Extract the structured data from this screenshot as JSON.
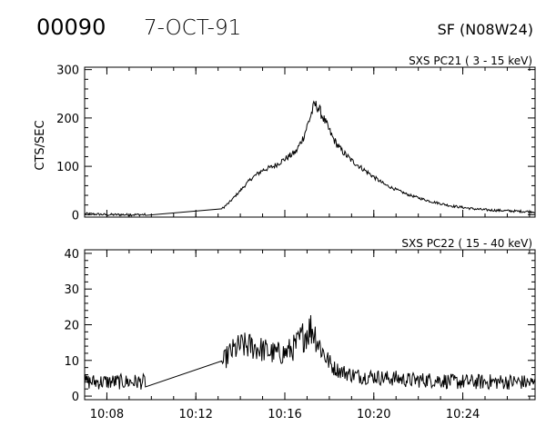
{
  "header": {
    "event_id": "00090",
    "date": "7-OCT-91",
    "location": "SF (N08W24)"
  },
  "chart_data": [
    {
      "type": "line",
      "title": "SXS PC21  (  3 - 15 keV)",
      "ylabel": "CTS/SEC",
      "ylim": [
        -5,
        305
      ],
      "yticks": [
        0,
        100,
        200,
        300
      ],
      "ytick_labels": [
        "0",
        "100",
        "200",
        "300"
      ],
      "xlim": [
        "10:07:00",
        "10:27:15"
      ],
      "xticks": [
        "10:08",
        "10:12",
        "10:16",
        "10:20",
        "10:24"
      ],
      "grid": false,
      "series": [
        {
          "x": [
            "10:07:00",
            "10:07:30",
            "10:08:00",
            "10:08:30",
            "10:09:00",
            "10:09:30",
            "10:09:45",
            "10:13:10",
            "10:13:30",
            "10:14:00",
            "10:14:30",
            "10:15:00",
            "10:15:30",
            "10:16:00",
            "10:16:30",
            "10:16:50",
            "10:17:10",
            "10:17:20",
            "10:17:30",
            "10:17:50",
            "10:18:10",
            "10:18:30",
            "10:19:00",
            "10:19:30",
            "10:20:00",
            "10:20:30",
            "10:21:00",
            "10:21:30",
            "10:22:00",
            "10:22:30",
            "10:23:00",
            "10:23:30",
            "10:24:00",
            "10:24:30",
            "10:25:00",
            "10:25:30",
            "10:26:00",
            "10:26:30",
            "10:27:15"
          ],
          "y": [
            2,
            1,
            0,
            0,
            0,
            0,
            0,
            12,
            25,
            50,
            75,
            92,
            100,
            115,
            130,
            160,
            205,
            228,
            222,
            190,
            158,
            135,
            112,
            95,
            78,
            62,
            52,
            42,
            35,
            28,
            23,
            18,
            15,
            12,
            10,
            9,
            8,
            7,
            6
          ]
        }
      ]
    },
    {
      "type": "line",
      "title": "SXS PC22  ( 15 - 40 keV)",
      "ylabel": "",
      "ylim": [
        -1,
        41
      ],
      "yticks": [
        0,
        10,
        20,
        30,
        40
      ],
      "ytick_labels": [
        "0",
        "10",
        "20",
        "30",
        "40"
      ],
      "xlim": [
        "10:07:00",
        "10:27:15"
      ],
      "xticks": [
        "10:08",
        "10:12",
        "10:16",
        "10:20",
        "10:24"
      ],
      "grid": false,
      "series": [
        {
          "x": [
            "10:07:00",
            "10:07:30",
            "10:08:00",
            "10:08:30",
            "10:09:00",
            "10:09:30",
            "10:09:45",
            "10:13:10",
            "10:13:30",
            "10:14:00",
            "10:14:30",
            "10:15:00",
            "10:15:30",
            "10:16:00",
            "10:16:30",
            "10:16:50",
            "10:17:10",
            "10:17:20",
            "10:17:30",
            "10:17:50",
            "10:18:10",
            "10:18:30",
            "10:19:00",
            "10:19:30",
            "10:20:00",
            "10:20:30",
            "10:21:00",
            "10:21:30",
            "10:22:00",
            "10:22:30",
            "10:23:00",
            "10:23:30",
            "10:24:00",
            "10:24:30",
            "10:25:00",
            "10:25:30",
            "10:26:00",
            "10:26:30",
            "10:27:15"
          ],
          "y": [
            4,
            4,
            4,
            4,
            4,
            4,
            4,
            9,
            12,
            14,
            14,
            13,
            12,
            12,
            14,
            17,
            19,
            18,
            15,
            11,
            8,
            7,
            6,
            5.5,
            5.5,
            5,
            5,
            4.5,
            4.5,
            4.5,
            4.5,
            4,
            4,
            4,
            4,
            4,
            4,
            4,
            3.5
          ]
        }
      ]
    }
  ]
}
